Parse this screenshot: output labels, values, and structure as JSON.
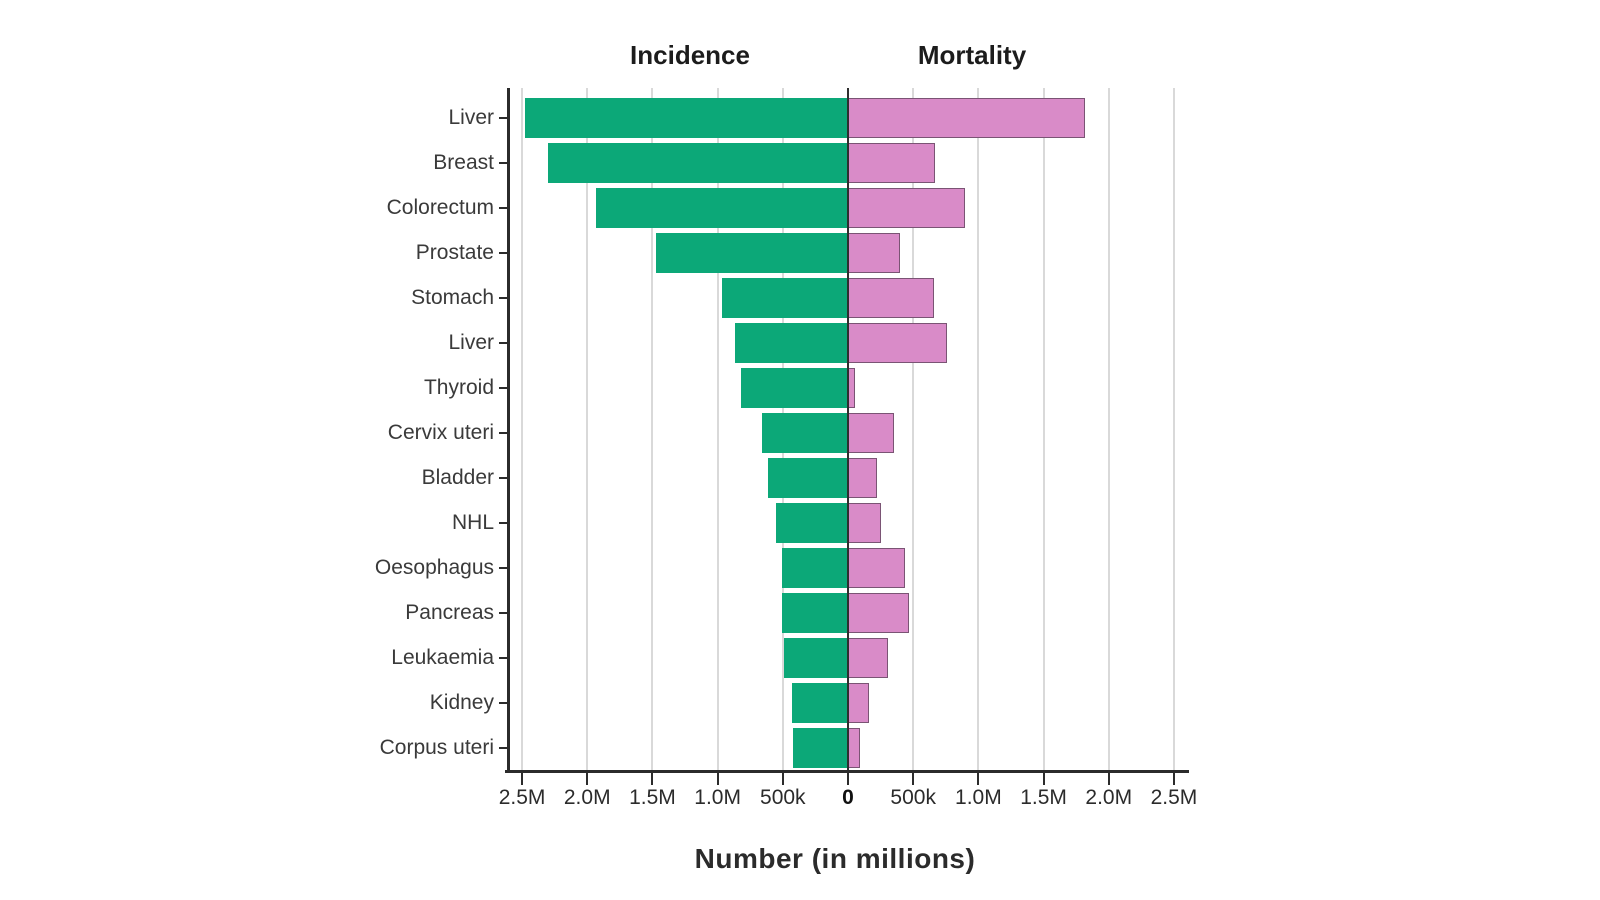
{
  "chart_data": {
    "type": "bar",
    "variant": "diverging-horizontal (population-pyramid style)",
    "title_left": "Incidence",
    "title_right": "Mortality",
    "xlabel": "Number (in millions)",
    "categories": [
      "Liver",
      "Breast",
      "Colorectum",
      "Prostate",
      "Stomach",
      "Liver",
      "Thyroid",
      "Cervix uteri",
      "Bladder",
      "NHL",
      "Oesophagus",
      "Pancreas",
      "Leukaemia",
      "Kidney",
      "Corpus uteri"
    ],
    "series": [
      {
        "name": "Incidence",
        "side": "left",
        "values_millions": [
          2.48,
          2.3,
          1.93,
          1.47,
          0.97,
          0.87,
          0.82,
          0.66,
          0.61,
          0.55,
          0.51,
          0.51,
          0.49,
          0.43,
          0.42
        ]
      },
      {
        "name": "Mortality",
        "side": "right",
        "values_millions": [
          1.82,
          0.67,
          0.9,
          0.4,
          0.66,
          0.76,
          0.05,
          0.35,
          0.22,
          0.25,
          0.44,
          0.47,
          0.31,
          0.16,
          0.09
        ]
      }
    ],
    "x_ticks": [
      {
        "label": "2.5M",
        "value_millions": -2.5,
        "bold": false
      },
      {
        "label": "2.0M",
        "value_millions": -2.0,
        "bold": false
      },
      {
        "label": "1.5M",
        "value_millions": -1.5,
        "bold": false
      },
      {
        "label": "1.0M",
        "value_millions": -1.0,
        "bold": false
      },
      {
        "label": "500k",
        "value_millions": -0.5,
        "bold": false
      },
      {
        "label": "0",
        "value_millions": 0.0,
        "bold": true
      },
      {
        "label": "500k",
        "value_millions": 0.5,
        "bold": false
      },
      {
        "label": "1.0M",
        "value_millions": 1.0,
        "bold": false
      },
      {
        "label": "1.5M",
        "value_millions": 1.5,
        "bold": false
      },
      {
        "label": "2.0M",
        "value_millions": 2.0,
        "bold": false
      },
      {
        "label": "2.5M",
        "value_millions": 2.5,
        "bold": false
      }
    ],
    "xlim_millions": [
      -2.6,
      2.6
    ],
    "grid": true,
    "legend_position": "none (column headers above chart)",
    "colors": {
      "incidence_fill": "#0ca878",
      "mortality_fill": "#d98bc8",
      "mortality_border": "#7a5474",
      "gridline": "#d9d9d9",
      "zero_line": "#2f2f2f",
      "axis": "#2b2b2b",
      "text": "#2b2b2b",
      "background": "#ffffff"
    }
  }
}
